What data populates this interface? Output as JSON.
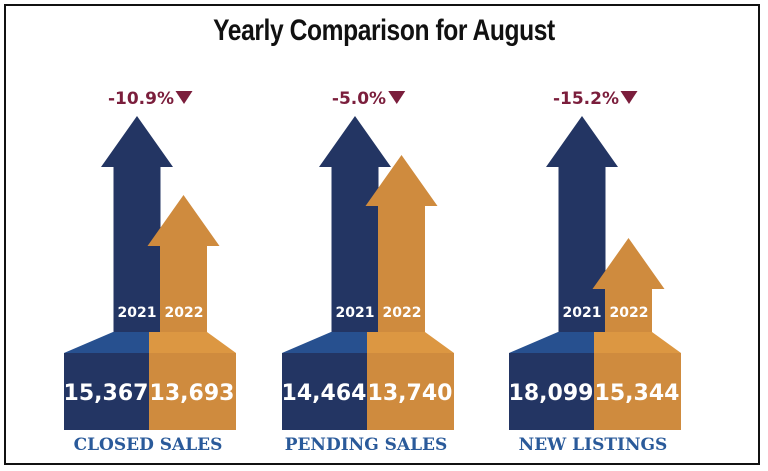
{
  "chart_data": {
    "type": "bar",
    "title": "Yearly Comparison for August",
    "legend": [
      "2021",
      "2022"
    ],
    "categories": [
      "CLOSED SALES",
      "PENDING SALES",
      "NEW LISTINGS"
    ],
    "series": [
      {
        "name": "2021",
        "values": [
          15367,
          14464,
          18099
        ],
        "labels": [
          "15,367",
          "14,464",
          "18,099"
        ]
      },
      {
        "name": "2022",
        "values": [
          13693,
          13740,
          15344
        ],
        "labels": [
          "13,693",
          "13,740",
          "15,344"
        ]
      }
    ],
    "changes": [
      "-10.9%",
      "-5.0%",
      "-15.2%"
    ],
    "change_direction": "down"
  },
  "colors": {
    "navy": "#233563",
    "blue_top": "#27508f",
    "gold": "#cf8b3e",
    "gold_top": "#dc9742",
    "maroon": "#7b1e3c",
    "label": "#2a5a9a"
  }
}
